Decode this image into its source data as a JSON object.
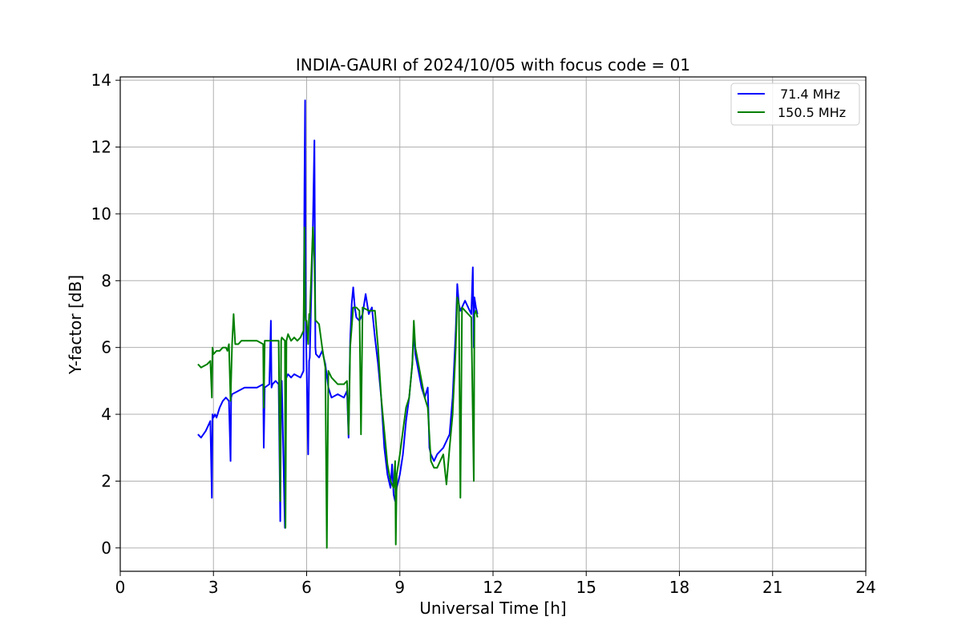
{
  "chart_data": {
    "type": "line",
    "title": "INDIA-GAURI of 2024/10/05 with focus code = 01",
    "xlabel": "Universal Time [h]",
    "ylabel": "Y-factor [dB]",
    "xlim": [
      0,
      24
    ],
    "ylim": [
      -0.7,
      14.1
    ],
    "xticks": [
      0,
      3,
      6,
      9,
      12,
      15,
      18,
      21,
      24
    ],
    "xtick_labels": [
      "0",
      "3",
      "6",
      "9",
      "12",
      "15",
      "18",
      "21",
      "24"
    ],
    "yticks": [
      0,
      2,
      4,
      6,
      8,
      10,
      12,
      14
    ],
    "ytick_labels": [
      "0",
      "2",
      "4",
      "6",
      "8",
      "10",
      "12",
      "14"
    ],
    "grid": true,
    "legend_position": "top-right",
    "series": [
      {
        "name": " 71.4 MHz",
        "color": "#0000ff",
        "x": [
          2.5,
          2.6,
          2.75,
          2.9,
          2.95,
          2.97,
          3.0,
          3.05,
          3.1,
          3.2,
          3.3,
          3.4,
          3.5,
          3.55,
          3.57,
          3.6,
          3.8,
          4.0,
          4.2,
          4.4,
          4.6,
          4.62,
          4.65,
          4.8,
          4.85,
          4.87,
          4.9,
          5.0,
          5.1,
          5.15,
          5.18,
          5.2,
          5.3,
          5.32,
          5.35,
          5.4,
          5.5,
          5.6,
          5.8,
          5.9,
          5.93,
          5.95,
          5.97,
          6.0,
          6.05,
          6.08,
          6.1,
          6.2,
          6.25,
          6.28,
          6.3,
          6.4,
          6.5,
          6.6,
          6.7,
          6.8,
          7.0,
          7.2,
          7.3,
          7.35,
          7.38,
          7.4,
          7.45,
          7.5,
          7.55,
          7.6,
          7.7,
          7.8,
          7.9,
          8.0,
          8.1,
          8.2,
          8.3,
          8.4,
          8.5,
          8.6,
          8.7,
          8.75,
          8.8,
          8.85,
          8.9,
          9.0,
          9.1,
          9.2,
          9.3,
          9.4,
          9.45,
          9.5,
          9.6,
          9.7,
          9.8,
          9.9,
          9.95,
          10.0,
          10.1,
          10.2,
          10.3,
          10.4,
          10.5,
          10.6,
          10.7,
          10.8,
          10.85,
          10.9,
          10.95,
          11.0,
          11.1,
          11.2,
          11.3,
          11.35,
          11.38,
          11.4,
          11.45,
          11.5
        ],
        "y": [
          3.4,
          3.3,
          3.5,
          3.8,
          1.5,
          4.0,
          3.9,
          4.0,
          3.9,
          4.2,
          4.4,
          4.5,
          4.4,
          2.6,
          4.5,
          4.6,
          4.7,
          4.8,
          4.8,
          4.8,
          4.9,
          3.0,
          4.8,
          4.9,
          6.8,
          4.8,
          4.9,
          5.0,
          4.9,
          0.8,
          4.9,
          5.0,
          0.6,
          5.0,
          5.1,
          5.2,
          5.1,
          5.2,
          5.1,
          5.3,
          10.9,
          13.4,
          7.0,
          5.4,
          2.8,
          5.6,
          5.7,
          9.6,
          12.2,
          6.0,
          5.8,
          5.7,
          5.9,
          5.5,
          4.8,
          4.5,
          4.6,
          4.5,
          4.7,
          3.3,
          5.0,
          6.2,
          7.3,
          7.8,
          7.2,
          6.9,
          6.8,
          7.0,
          7.6,
          7.0,
          7.2,
          6.3,
          5.5,
          4.5,
          3.0,
          2.2,
          1.8,
          2.5,
          1.6,
          1.4,
          1.8,
          2.2,
          2.8,
          3.8,
          4.5,
          5.5,
          6.5,
          5.8,
          5.3,
          4.8,
          4.5,
          4.8,
          3.0,
          2.8,
          2.6,
          2.8,
          2.9,
          3.0,
          3.2,
          3.4,
          4.5,
          6.5,
          7.9,
          7.3,
          7.1,
          7.2,
          7.4,
          7.2,
          7.0,
          8.4,
          6.0,
          7.5,
          7.2,
          7.0
        ]
      },
      {
        "name": "150.5 MHz",
        "color": "#008000",
        "x": [
          2.5,
          2.6,
          2.8,
          2.9,
          2.95,
          2.97,
          3.0,
          3.1,
          3.2,
          3.3,
          3.4,
          3.45,
          3.5,
          3.55,
          3.6,
          3.65,
          3.7,
          3.8,
          3.9,
          4.0,
          4.2,
          4.4,
          4.6,
          4.62,
          4.65,
          4.8,
          5.0,
          5.1,
          5.15,
          5.18,
          5.2,
          5.3,
          5.32,
          5.35,
          5.4,
          5.5,
          5.6,
          5.7,
          5.8,
          5.9,
          5.93,
          5.95,
          5.97,
          6.0,
          6.05,
          6.08,
          6.1,
          6.2,
          6.25,
          6.28,
          6.3,
          6.4,
          6.5,
          6.6,
          6.65,
          6.7,
          6.8,
          7.0,
          7.2,
          7.3,
          7.35,
          7.38,
          7.4,
          7.5,
          7.6,
          7.7,
          7.75,
          7.8,
          8.0,
          8.2,
          8.3,
          8.4,
          8.5,
          8.6,
          8.7,
          8.8,
          8.85,
          8.87,
          8.9,
          9.0,
          9.1,
          9.2,
          9.3,
          9.4,
          9.45,
          9.5,
          9.6,
          9.7,
          9.8,
          9.9,
          10.0,
          10.1,
          10.2,
          10.3,
          10.4,
          10.5,
          10.6,
          10.7,
          10.8,
          10.85,
          10.9,
          10.95,
          11.0,
          11.1,
          11.2,
          11.3,
          11.38,
          11.4,
          11.45,
          11.5
        ],
        "y": [
          5.5,
          5.4,
          5.5,
          5.6,
          4.5,
          6.0,
          5.8,
          5.9,
          5.9,
          6.0,
          6.0,
          5.9,
          6.1,
          4.4,
          6.1,
          7.0,
          6.1,
          6.1,
          6.2,
          6.2,
          6.2,
          6.2,
          6.1,
          4.2,
          6.2,
          6.2,
          6.2,
          6.2,
          1.4,
          6.2,
          6.3,
          6.2,
          0.6,
          6.2,
          6.4,
          6.2,
          6.3,
          6.2,
          6.3,
          6.5,
          9.6,
          7.0,
          6.8,
          6.8,
          6.1,
          7.0,
          6.9,
          9.6,
          8.6,
          6.8,
          6.8,
          6.7,
          6.0,
          5.4,
          0.0,
          5.3,
          5.1,
          4.9,
          4.9,
          5.0,
          3.4,
          4.8,
          6.0,
          7.2,
          7.2,
          7.1,
          3.4,
          7.2,
          7.1,
          7.1,
          6.0,
          4.5,
          3.5,
          2.5,
          2.0,
          1.8,
          2.6,
          0.1,
          2.2,
          2.8,
          3.5,
          4.2,
          4.5,
          5.5,
          6.8,
          6.0,
          5.5,
          5.0,
          4.5,
          4.2,
          2.6,
          2.4,
          2.4,
          2.6,
          2.8,
          1.9,
          3.0,
          4.0,
          6.0,
          7.5,
          7.3,
          1.5,
          7.2,
          7.1,
          7.0,
          6.9,
          2.0,
          7.0,
          7.1,
          6.9
        ]
      }
    ]
  }
}
